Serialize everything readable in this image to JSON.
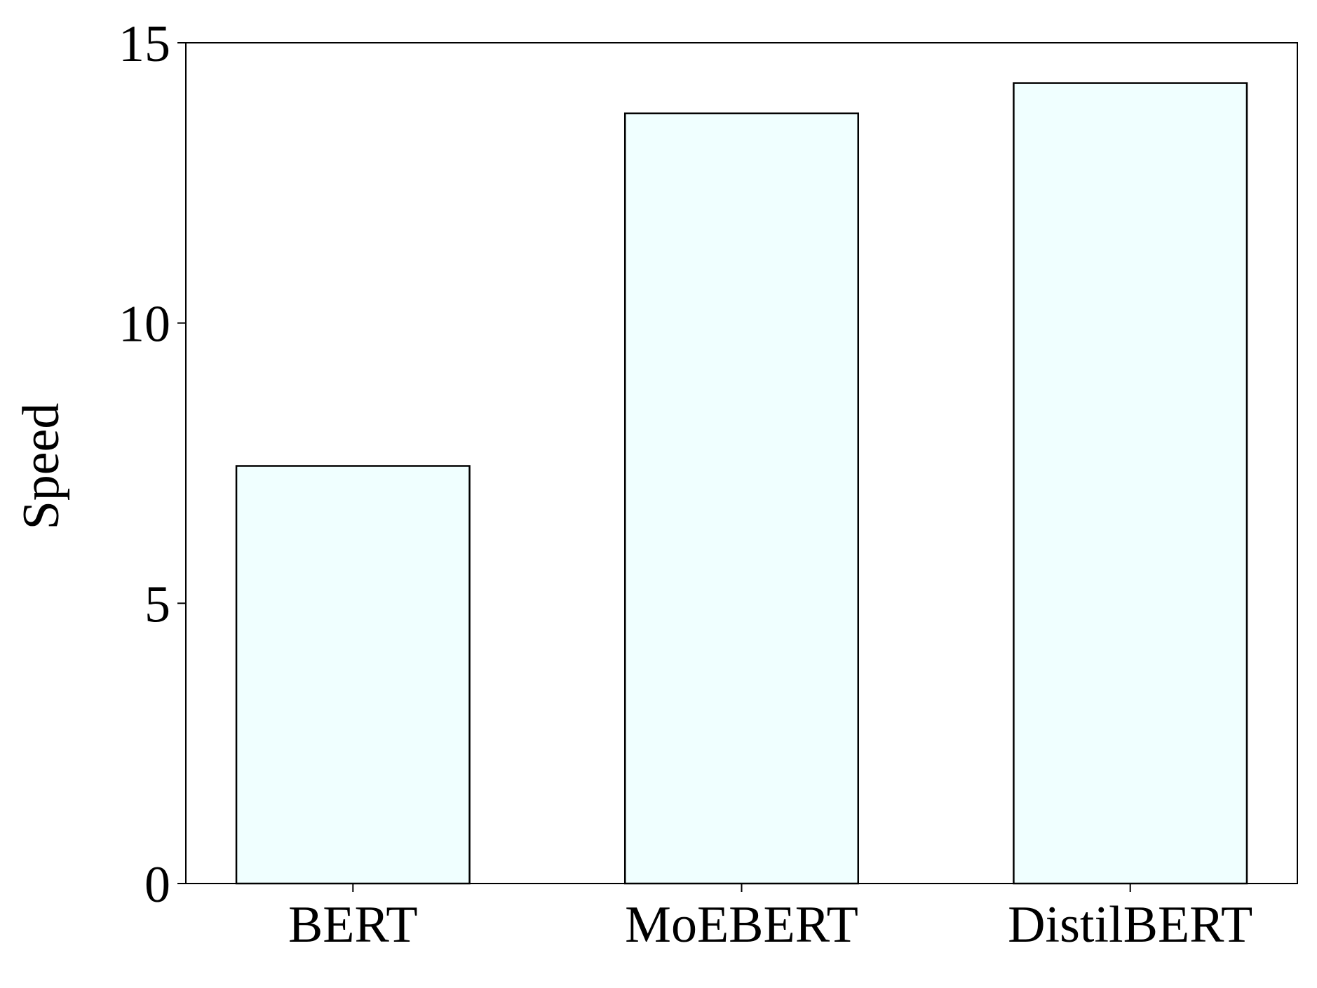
{
  "chart_data": {
    "type": "bar",
    "y_label": "Speed",
    "categories": [
      "BERT",
      "MoEBERT",
      "DistilBERT"
    ],
    "values": [
      7.45,
      13.74,
      14.28
    ],
    "color": "#f0ffff",
    "ylim": [
      0,
      15
    ],
    "yticks": [
      0,
      5,
      10,
      15
    ],
    "grid": false
  }
}
